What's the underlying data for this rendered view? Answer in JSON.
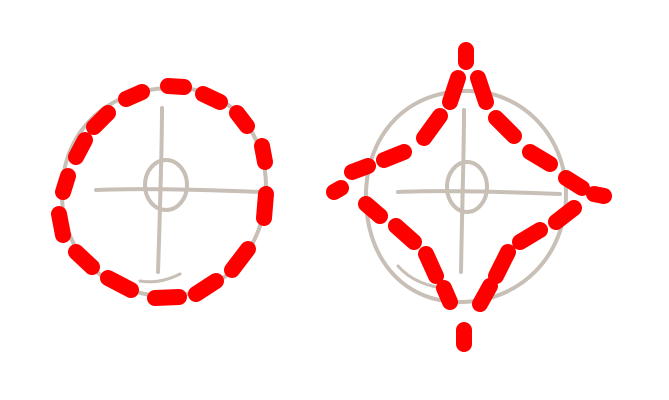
{
  "figure": {
    "background": "#ffffff",
    "guide_color": "#c8bfb6",
    "dash_color": "#ff0000"
  },
  "sketches": [
    {
      "name": "circle-sketch",
      "guide_shape": "circle",
      "overlay_shape": "dashed-circle"
    },
    {
      "name": "star-sketch",
      "guide_shape": "circle",
      "overlay_shape": "dashed-four-point-star"
    }
  ]
}
